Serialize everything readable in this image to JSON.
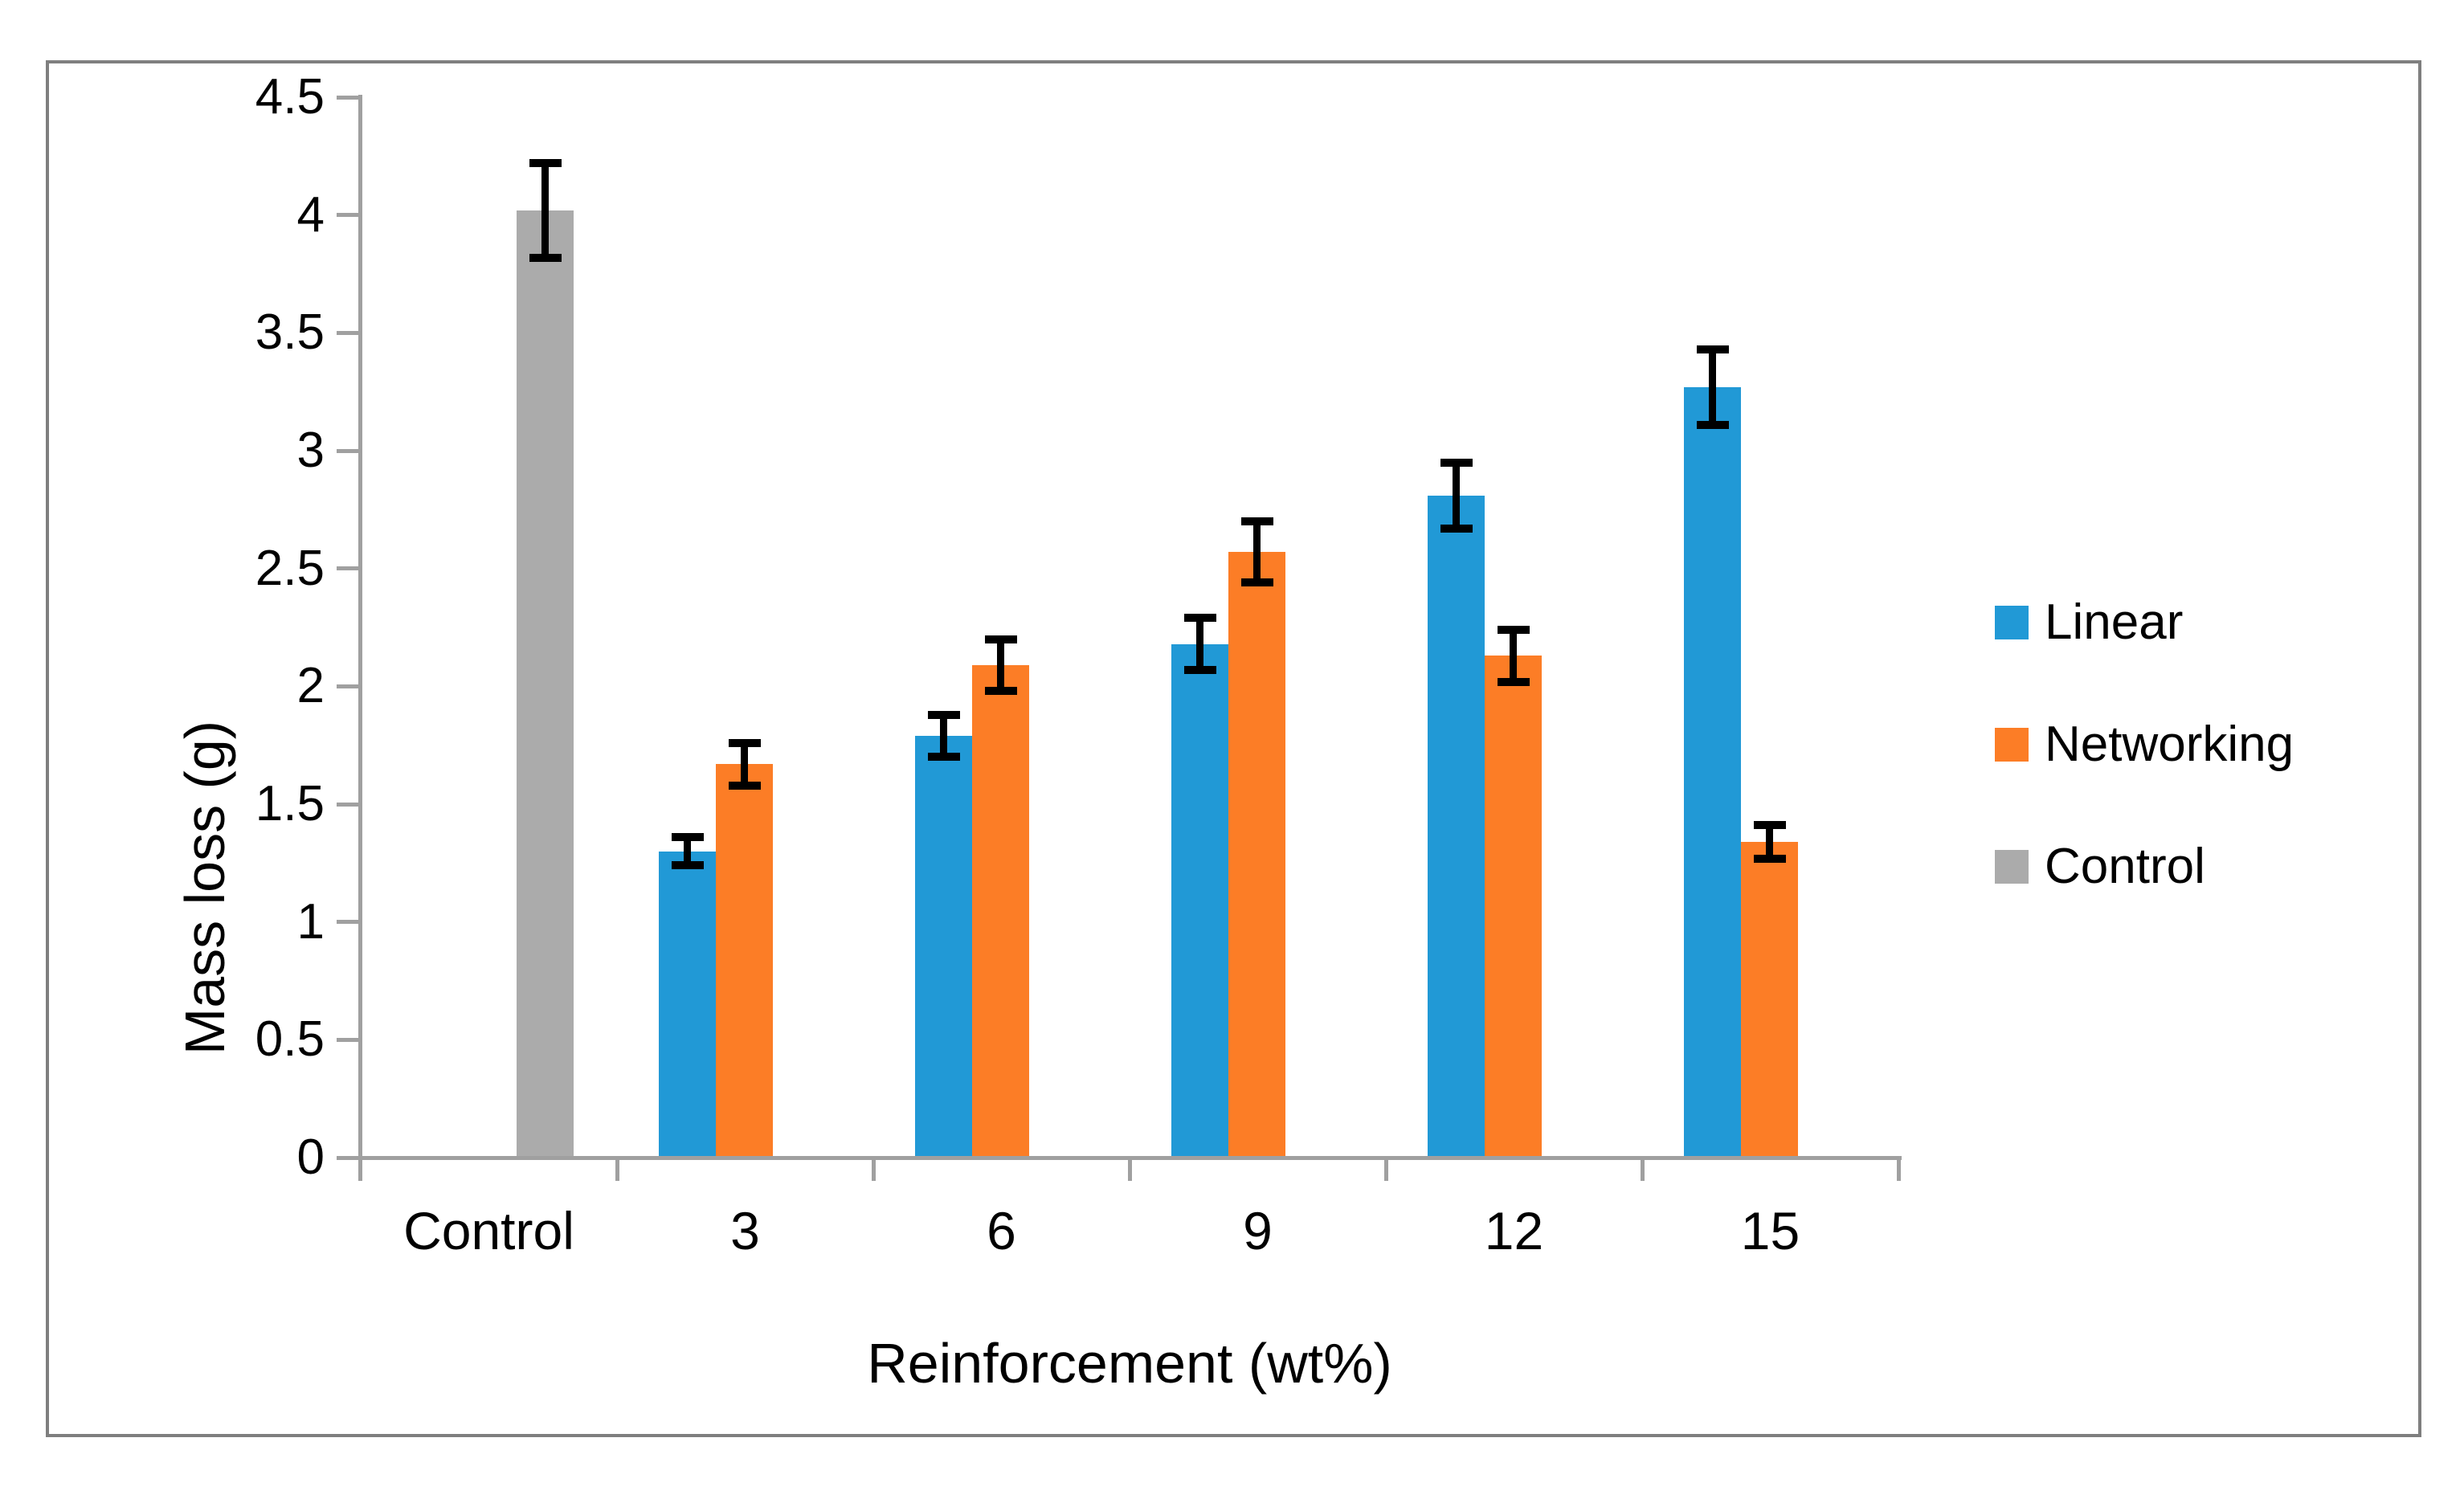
{
  "chart_data": {
    "type": "bar",
    "title": "",
    "xlabel": "Reinforcement (wt%)",
    "ylabel": "Mass loss (g)",
    "ylim": [
      0,
      4.5
    ],
    "ytick_step": 0.5,
    "yticks": [
      "0",
      "0.5",
      "1",
      "1.5",
      "2",
      "2.5",
      "3",
      "3.5",
      "4",
      "4.5"
    ],
    "grid": "off",
    "legend_position": "right",
    "categories": [
      "Control",
      "3",
      "6",
      "9",
      "12",
      "15"
    ],
    "series": [
      {
        "name": "Linear",
        "color": "#2199d6",
        "values": [
          null,
          1.3,
          1.79,
          2.18,
          2.81,
          3.27
        ],
        "errors": [
          null,
          0.06,
          0.09,
          0.11,
          0.14,
          0.16
        ]
      },
      {
        "name": "Networking",
        "color": "#fc7d26",
        "values": [
          null,
          1.67,
          2.09,
          2.57,
          2.13,
          1.34
        ],
        "errors": [
          null,
          0.09,
          0.11,
          0.13,
          0.11,
          0.07
        ]
      },
      {
        "name": "Control",
        "color": "#ababab",
        "values": [
          4.02,
          null,
          null,
          null,
          null,
          null
        ],
        "errors": [
          0.2,
          null,
          null,
          null,
          null,
          null
        ]
      }
    ]
  }
}
